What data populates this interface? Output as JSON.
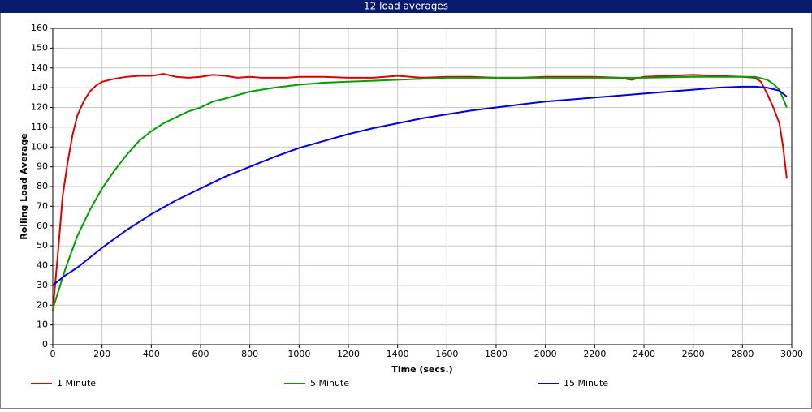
{
  "chart_data": {
    "type": "line",
    "title": "12 load averages",
    "xlabel": "Time (secs.)",
    "ylabel": "Rolling Load Average",
    "xlim": [
      0,
      3000
    ],
    "ylim": [
      0,
      160
    ],
    "xticks": [
      0,
      200,
      400,
      600,
      800,
      1000,
      1200,
      1400,
      1600,
      1800,
      2000,
      2200,
      2400,
      2600,
      2800,
      3000
    ],
    "yticks": [
      0,
      10,
      20,
      30,
      40,
      50,
      60,
      70,
      80,
      90,
      100,
      110,
      120,
      130,
      140,
      150,
      160
    ],
    "grid": true,
    "legend": "bottom",
    "series": [
      {
        "name": "1 Minute",
        "color": "#e00000",
        "x": [
          0,
          20,
          40,
          60,
          80,
          100,
          125,
          150,
          175,
          200,
          250,
          300,
          350,
          400,
          450,
          500,
          550,
          600,
          650,
          700,
          750,
          800,
          850,
          900,
          950,
          1000,
          1100,
          1200,
          1300,
          1400,
          1500,
          1600,
          1700,
          1800,
          1900,
          2000,
          2100,
          2200,
          2300,
          2350,
          2400,
          2500,
          2600,
          2700,
          2800,
          2850,
          2875,
          2900,
          2925,
          2950,
          2965,
          2980
        ],
        "values": [
          17,
          45,
          75,
          92,
          106,
          116,
          123,
          128,
          131,
          133,
          134.5,
          135.5,
          136,
          136,
          137,
          135.5,
          135,
          135.5,
          136.5,
          136,
          135,
          135.5,
          135,
          135,
          135,
          135.5,
          135.5,
          135,
          135,
          136,
          135,
          135.5,
          135.5,
          135,
          135,
          135.5,
          135.5,
          135.5,
          135,
          134,
          135.5,
          136,
          136.5,
          136,
          135.5,
          135,
          133,
          127,
          120,
          112,
          100,
          84
        ]
      },
      {
        "name": "5 Minute",
        "color": "#00a000",
        "x": [
          0,
          50,
          100,
          150,
          200,
          250,
          300,
          350,
          400,
          450,
          500,
          550,
          600,
          650,
          700,
          800,
          900,
          1000,
          1100,
          1200,
          1300,
          1400,
          1500,
          1600,
          1800,
          2000,
          2200,
          2400,
          2600,
          2800,
          2850,
          2900,
          2925,
          2950,
          2980
        ],
        "values": [
          18,
          38,
          55,
          68,
          79,
          88,
          96,
          103,
          108,
          112,
          115,
          118,
          120,
          123,
          124.5,
          128,
          130,
          131.5,
          132.5,
          133,
          133.5,
          134,
          134.5,
          135,
          135,
          135,
          135,
          135,
          135.5,
          135.5,
          135.5,
          134,
          132,
          129,
          120
        ]
      },
      {
        "name": "15 Minute",
        "color": "#0000e0",
        "x": [
          0,
          50,
          100,
          200,
          300,
          400,
          500,
          600,
          700,
          800,
          900,
          1000,
          1100,
          1200,
          1300,
          1400,
          1500,
          1600,
          1700,
          1800,
          1900,
          2000,
          2100,
          2200,
          2300,
          2400,
          2500,
          2600,
          2700,
          2800,
          2850,
          2900,
          2950,
          2980
        ],
        "values": [
          30,
          35,
          39,
          49,
          58,
          66,
          73,
          79,
          85,
          90,
          95,
          99.5,
          103,
          106.5,
          109.5,
          112,
          114.5,
          116.5,
          118.5,
          120,
          121.5,
          123,
          124,
          125,
          126,
          127,
          128,
          129,
          130,
          130.5,
          130.5,
          130,
          128.5,
          125.5
        ]
      }
    ]
  }
}
